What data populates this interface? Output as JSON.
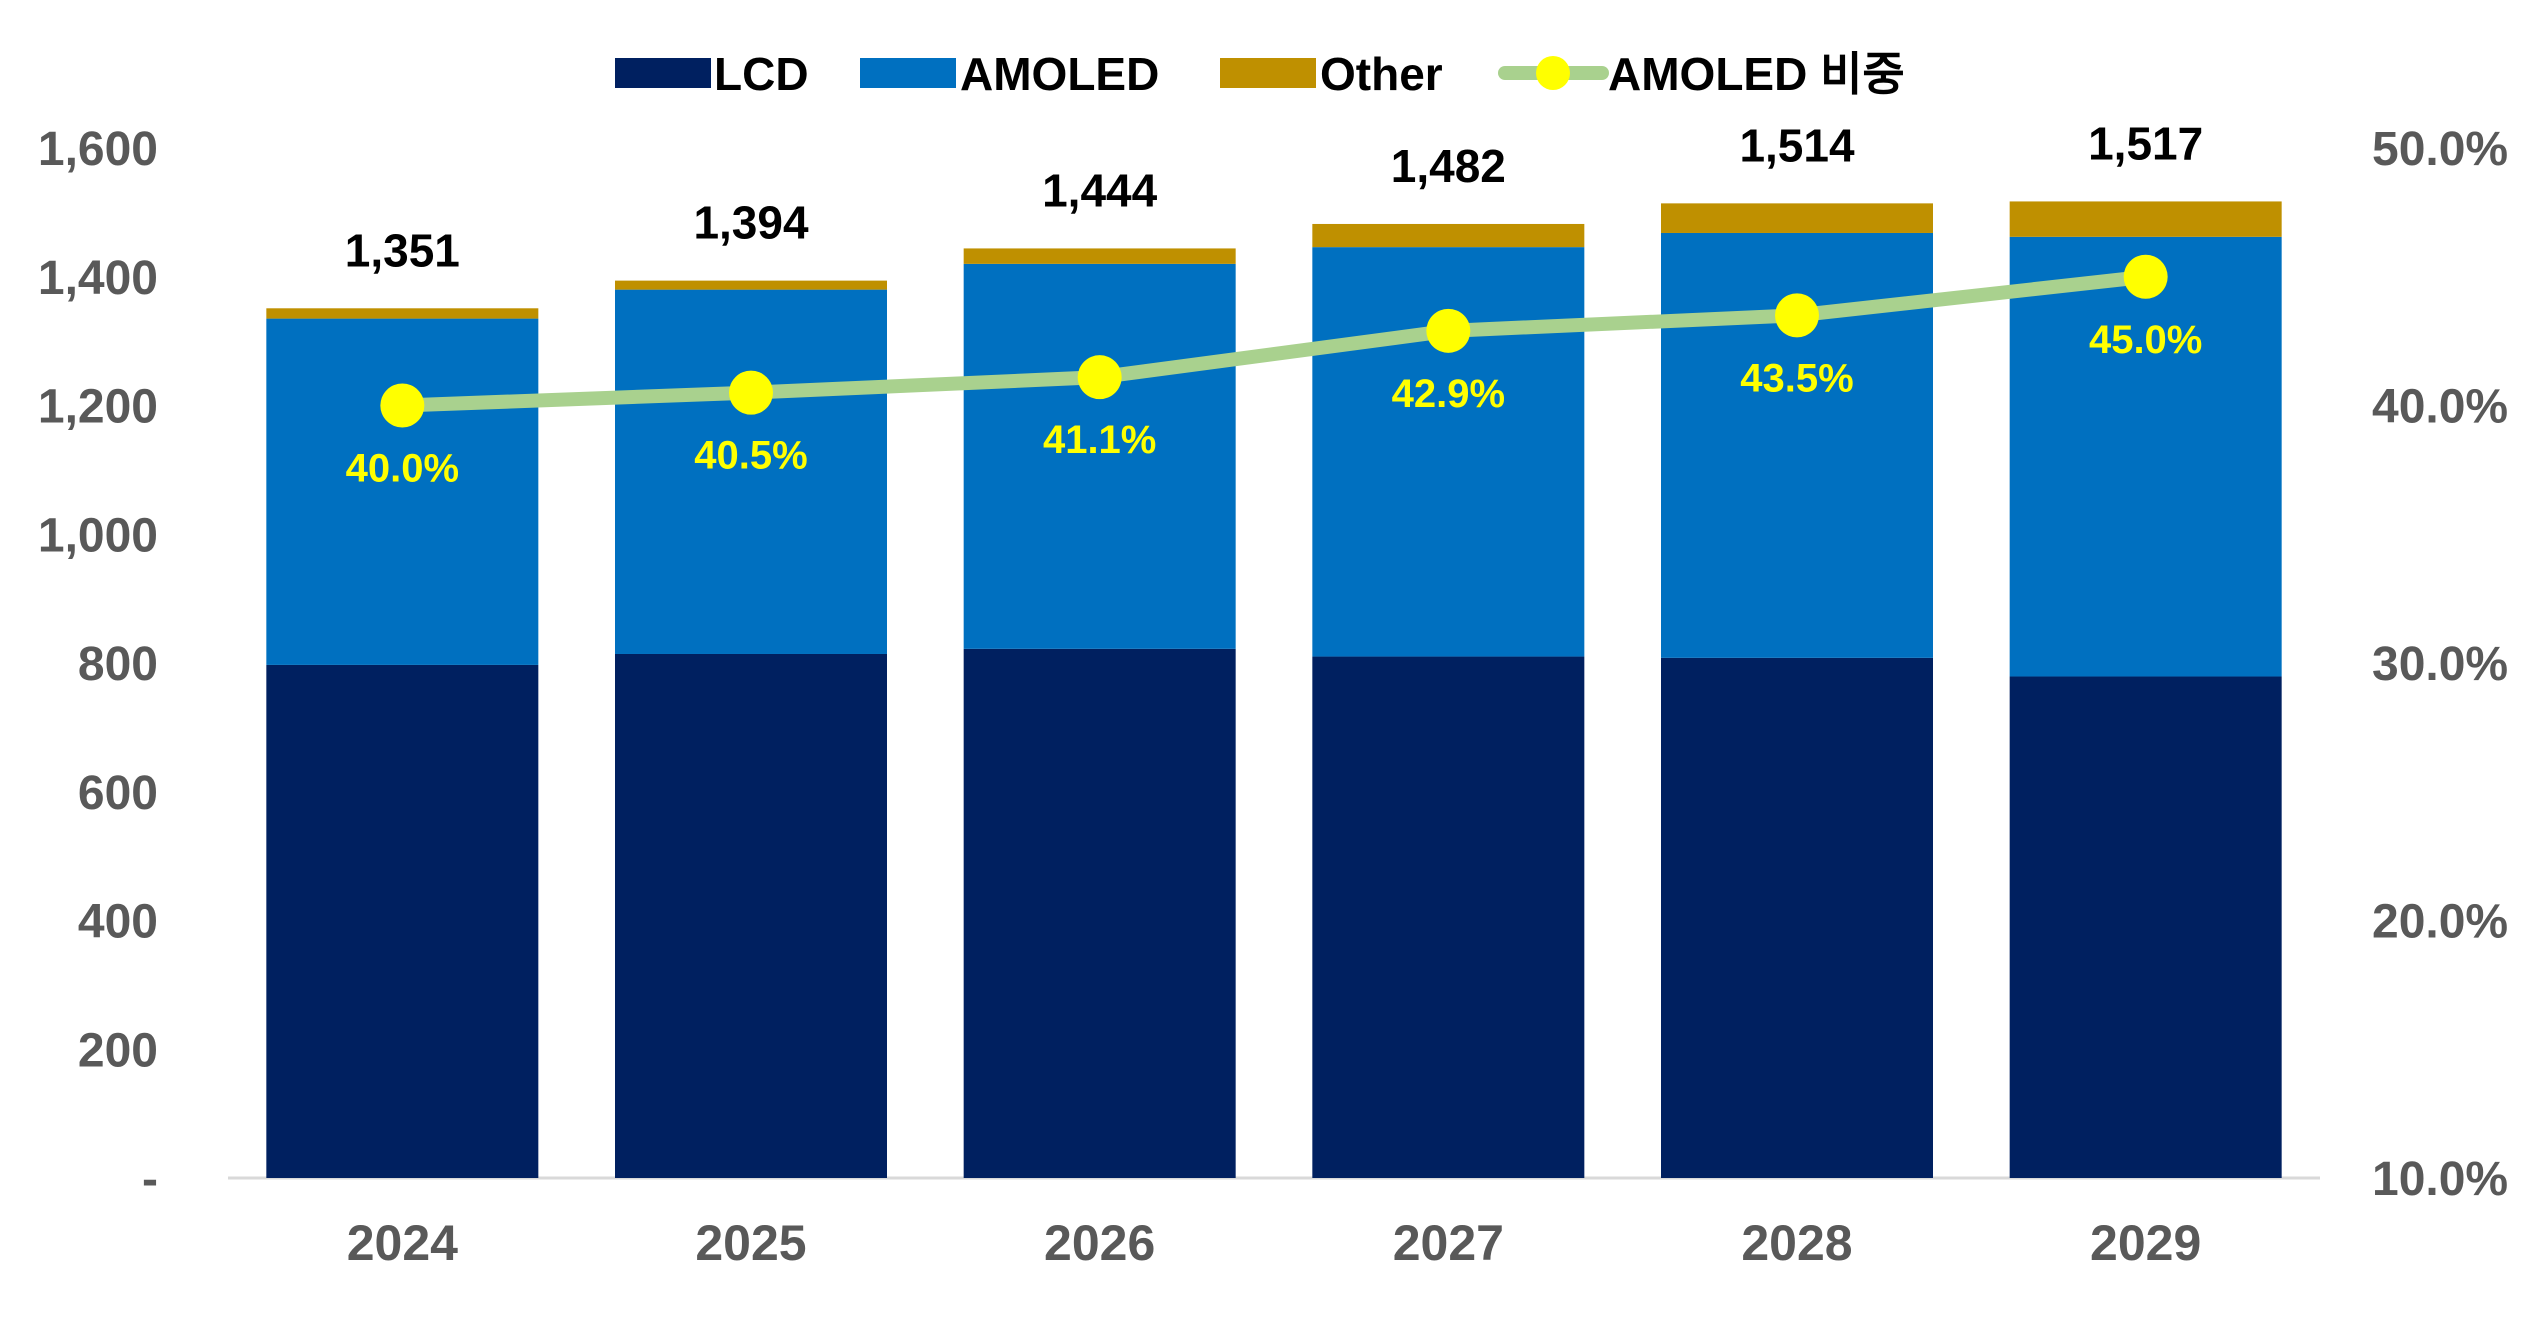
{
  "chart_data": {
    "type": "bar",
    "stacked": true,
    "categories": [
      "2024",
      "2025",
      "2026",
      "2027",
      "2028",
      "2029"
    ],
    "series": [
      {
        "name": "LCD",
        "values": [
          797,
          814,
          822,
          810,
          808,
          779
        ],
        "color": "#002060"
      },
      {
        "name": "AMOLED",
        "values": [
          538,
          566,
          598,
          636,
          660,
          683
        ],
        "color": "#0070C0"
      },
      {
        "name": "Other",
        "values": [
          16,
          14,
          24,
          36,
          46,
          55
        ],
        "color": "#BF9000"
      }
    ],
    "totals": [
      "1,351",
      "1,394",
      "1,444",
      "1,482",
      "1,514",
      "1,517"
    ],
    "line_series": {
      "name": "AMOLED 비중",
      "values": [
        40.0,
        40.5,
        41.1,
        42.9,
        43.5,
        45.0
      ],
      "labels": [
        "40.0%",
        "40.5%",
        "41.1%",
        "42.9%",
        "43.5%",
        "45.0%"
      ],
      "line_color": "#A9D18E",
      "marker_color": "#FFFF00",
      "label_color": "#FFFF00",
      "axis": "right"
    },
    "y_left": {
      "ylim": [
        0,
        1600
      ],
      "ticks": [
        0,
        200,
        400,
        600,
        800,
        1000,
        1200,
        1400,
        1600
      ],
      "tick_labels": [
        "-",
        "200",
        "400",
        "600",
        "800",
        "1,000",
        "1,200",
        "1,400",
        "1,600"
      ]
    },
    "y_right": {
      "ylim": [
        10,
        50
      ],
      "ticks": [
        10,
        20,
        30,
        40,
        50
      ],
      "tick_labels": [
        "10.0%",
        "20.0%",
        "30.0%",
        "40.0%",
        "50.0%"
      ]
    },
    "legend_position": "top",
    "grid": false
  }
}
